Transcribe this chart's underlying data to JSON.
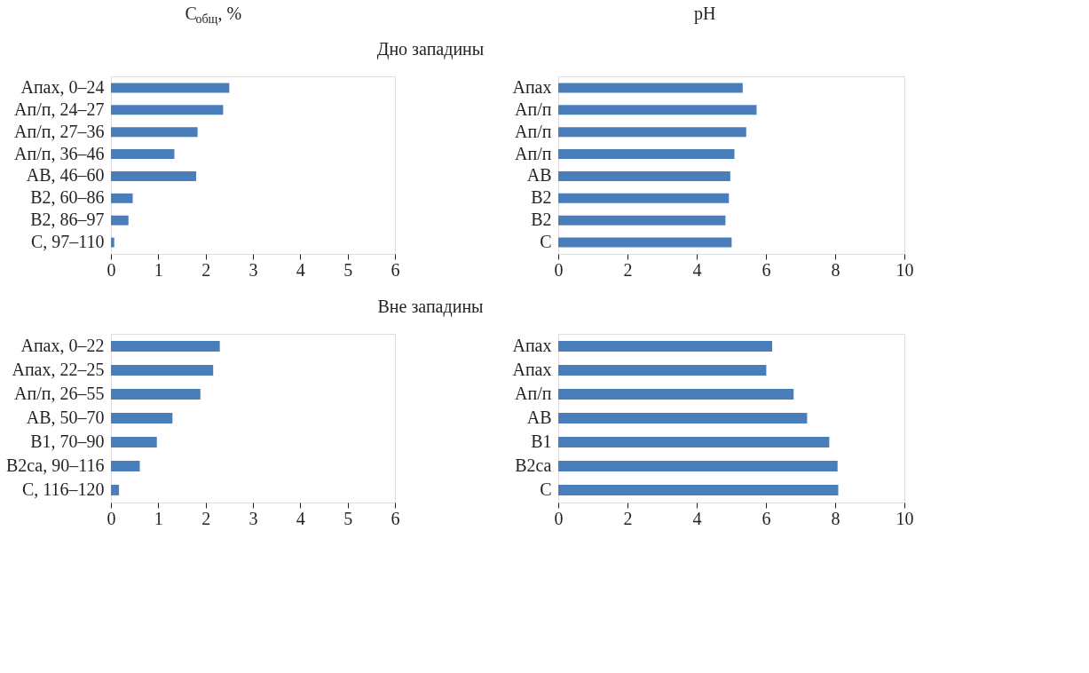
{
  "chart_data": [
    {
      "type": "bar",
      "orientation": "horizontal",
      "title": "C$_{общ}$, %",
      "subtitle": "Дно западины",
      "categories": [
        "Апах, 0‒24",
        "Ап/п, 24‒27",
        "Ап/п, 27‒36",
        "Ап/п, 36‒46",
        "АВ, 46‒60",
        "В2, 60‒86",
        "В2, 86‒97",
        "С, 97‒110"
      ],
      "values": [
        2.5,
        2.37,
        1.83,
        1.34,
        1.8,
        0.46,
        0.37,
        0.07
      ],
      "color": "#4a7ebb",
      "xlim": [
        0,
        6
      ],
      "xticks": [
        0,
        1,
        2,
        3,
        4,
        5,
        6
      ],
      "grid": false
    },
    {
      "type": "bar",
      "orientation": "horizontal",
      "title": "pH",
      "categories": [
        "Апах",
        "Ап/п",
        "Ап/п",
        "Ап/п",
        "АВ",
        "В2",
        "В2",
        "С"
      ],
      "values": [
        5.33,
        5.73,
        5.43,
        5.09,
        4.97,
        4.93,
        4.83,
        5.01
      ],
      "color": "#4a7ebb",
      "xlim": [
        0,
        10
      ],
      "xticks": [
        0,
        2,
        4,
        6,
        8,
        10
      ],
      "grid": false
    },
    {
      "type": "bar",
      "orientation": "horizontal",
      "subtitle": "Вне западины",
      "categories": [
        "Апах, 0‒22",
        "Апах, 22‒25",
        "Ап/п, 26‒55",
        "АВ, 50‒70",
        "В1, 70‒90",
        "В2са, 90‒116",
        "С, 116‒120"
      ],
      "values": [
        2.3,
        2.16,
        1.89,
        1.3,
        0.97,
        0.61,
        0.17
      ],
      "color": "#4a7ebb",
      "xlim": [
        0,
        6
      ],
      "xticks": [
        0,
        1,
        2,
        3,
        4,
        5,
        6
      ],
      "grid": false
    },
    {
      "type": "bar",
      "orientation": "horizontal",
      "categories": [
        "Апах",
        "Апах",
        "Ап/п",
        "АВ",
        "В1",
        "В2са",
        "С"
      ],
      "values": [
        6.18,
        6.01,
        6.8,
        7.19,
        7.83,
        8.07,
        8.09
      ],
      "color": "#4a7ebb",
      "xlim": [
        0,
        10
      ],
      "xticks": [
        0,
        2,
        4,
        6,
        8,
        10
      ],
      "grid": false
    }
  ]
}
